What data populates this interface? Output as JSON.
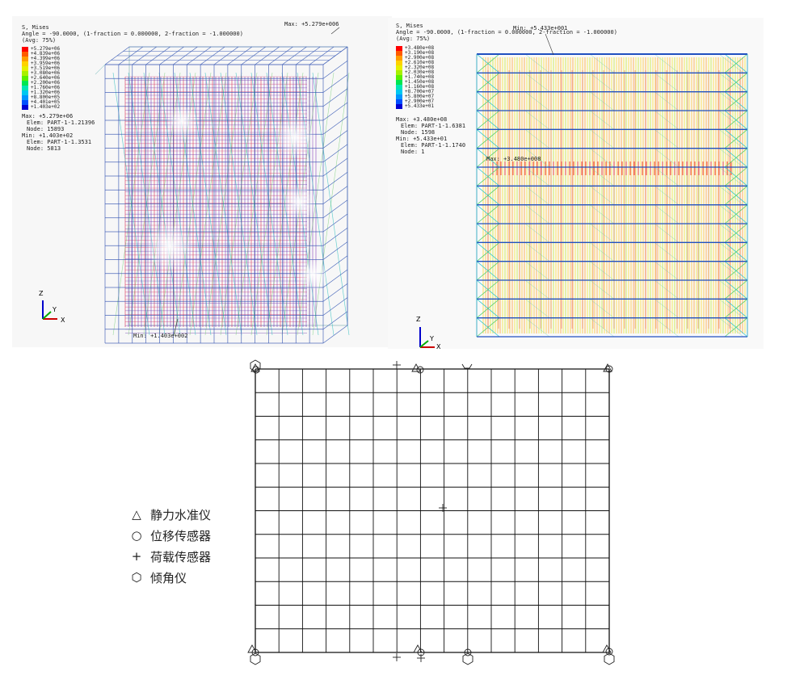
{
  "left_plot": {
    "header": [
      "S, Mises",
      "Angle = -90.0000, (1-fraction = 0.000000, 2-fraction = -1.000000)",
      "(Avg: 75%)"
    ],
    "legend_values": [
      "+5.279e+06",
      "+4.839e+06",
      "+4.399e+06",
      "+3.959e+06",
      "+3.519e+06",
      "+3.080e+06",
      "+2.640e+06",
      "+2.200e+06",
      "+1.760e+06",
      "+1.320e+06",
      "+8.800e+05",
      "+4.401e+05",
      "+1.403e+02"
    ],
    "stats": [
      "Max: +5.279e+06",
      "Elem: PART-1-1.21396",
      "Node: 15893",
      "Min: +1.403e+02",
      "Elem: PART-1-1.3531",
      "Node: 5813"
    ],
    "max_tag": "Max: +5.279e+006",
    "min_tag": "Min: +1.403e+002",
    "axes": {
      "z": "Z",
      "y": "Y",
      "x": "X"
    }
  },
  "right_plot": {
    "header": [
      "S, Mises",
      "Angle = -90.0000, (1-fraction = 0.000000, 2-fraction = -1.000000)",
      "(Avg: 75%)"
    ],
    "legend_values": [
      "+3.480e+08",
      "+3.190e+08",
      "+2.900e+08",
      "+2.610e+08",
      "+2.320e+08",
      "+2.030e+08",
      "+1.740e+08",
      "+1.450e+08",
      "+1.160e+08",
      "+8.700e+07",
      "+5.800e+07",
      "+2.900e+07",
      "+5.433e+01"
    ],
    "stats": [
      "Max: +3.480e+08",
      "Elem: PART-1-1.6381",
      "Node: 1598",
      "Min: +5.433e+01",
      "Elem: PART-1-1.1740",
      "Node: 1"
    ],
    "max_tag": "Max: +3.480e+008",
    "min_tag": "Min: +5.433e+001",
    "axes": {
      "z": "Z",
      "y": "Y",
      "x": "X"
    }
  },
  "legend_colors": [
    "#ff0000",
    "#ff5a00",
    "#ff9c00",
    "#ffd200",
    "#e6f000",
    "#a8f000",
    "#5af000",
    "#00e650",
    "#00e6b4",
    "#00c8f0",
    "#0096ff",
    "#0050ff",
    "#0000d2"
  ],
  "sensor_legend": [
    {
      "symbol": "△",
      "label": "静力水准仪"
    },
    {
      "symbol": "○",
      "label": "位移传感器"
    },
    {
      "symbol": "+",
      "label": "荷载传感器"
    },
    {
      "symbol": "⬡",
      "label": "倾角仪"
    }
  ]
}
